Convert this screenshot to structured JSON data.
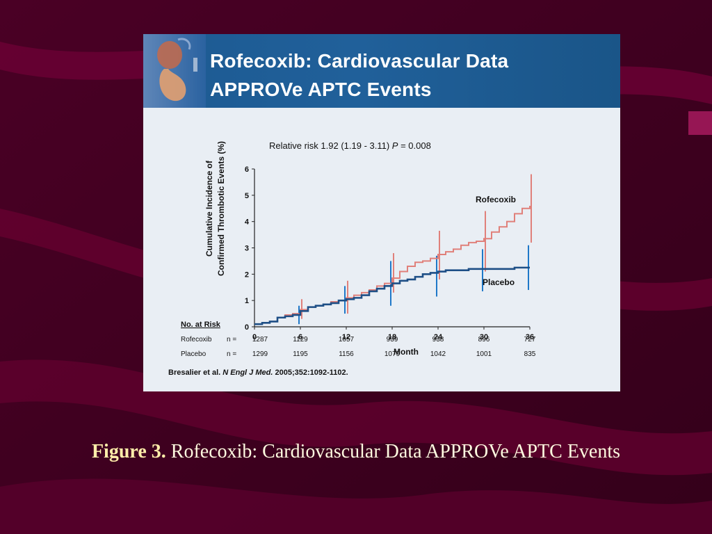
{
  "slide": {
    "title_line1": "Rofecoxib: Cardiovascular Data",
    "title_line2": "APPROVe APTC Events",
    "citation_authors": "Bresalier et al.",
    "citation_journal": "N Engl J Med.",
    "citation_rest": "2005;352:1092-1102."
  },
  "caption": {
    "label": "Figure 3.",
    "text": "Rofecoxib: Cardiovascular Data APPROVe APTC Events"
  },
  "colors": {
    "rofecoxib": "#e0807a",
    "placebo": "#1e4f86",
    "error_placebo": "#1f78c8"
  },
  "chart_data": {
    "type": "line",
    "title": "Rofecoxib: Cardiovascular Data APPROVe APTC Events",
    "xlabel": "Month",
    "ylabel_line1": "Cumulative Incidence of",
    "ylabel_line2": "Confirmed Thrombotic Events (%)",
    "xlim": [
      0,
      36
    ],
    "ylim": [
      0,
      6
    ],
    "xticks": [
      0,
      6,
      12,
      18,
      24,
      30,
      36
    ],
    "yticks": [
      0,
      1,
      2,
      3,
      4,
      5,
      6
    ],
    "annotation_prefix": "Relative risk 1.92 (1.19 - 3.11)",
    "annotation_p": "P",
    "annotation_suffix": " = 0.008",
    "series": [
      {
        "name": "Rofecoxib",
        "x": [
          0,
          1,
          2,
          3,
          4,
          5,
          6,
          7,
          8,
          9,
          10,
          11,
          12,
          13,
          14,
          15,
          16,
          17,
          18,
          19,
          20,
          21,
          22,
          23,
          24,
          25,
          26,
          27,
          28,
          29,
          30,
          31,
          32,
          33,
          34,
          35,
          36
        ],
        "y": [
          0.1,
          0.15,
          0.2,
          0.35,
          0.45,
          0.5,
          0.65,
          0.75,
          0.8,
          0.85,
          0.95,
          1.0,
          1.1,
          1.2,
          1.3,
          1.4,
          1.55,
          1.65,
          1.85,
          2.1,
          2.3,
          2.45,
          2.5,
          2.6,
          2.75,
          2.85,
          2.95,
          3.1,
          3.2,
          3.25,
          3.35,
          3.6,
          3.8,
          4.0,
          4.3,
          4.5,
          4.6
        ],
        "error_bars": [
          {
            "x": 6,
            "lo": 0.3,
            "hi": 1.05
          },
          {
            "x": 12,
            "lo": 0.5,
            "hi": 1.75
          },
          {
            "x": 18,
            "lo": 1.3,
            "hi": 2.8
          },
          {
            "x": 24,
            "lo": 1.8,
            "hi": 3.65
          },
          {
            "x": 30,
            "lo": 2.1,
            "hi": 4.4
          },
          {
            "x": 36,
            "lo": 3.2,
            "hi": 5.8
          }
        ]
      },
      {
        "name": "Placebo",
        "x": [
          0,
          1,
          2,
          3,
          4,
          5,
          6,
          7,
          8,
          9,
          10,
          11,
          12,
          13,
          14,
          15,
          16,
          17,
          18,
          19,
          20,
          21,
          22,
          23,
          24,
          25,
          26,
          27,
          28,
          29,
          30,
          31,
          32,
          33,
          34,
          35,
          36
        ],
        "y": [
          0.1,
          0.15,
          0.2,
          0.35,
          0.4,
          0.45,
          0.6,
          0.75,
          0.8,
          0.85,
          0.9,
          1.0,
          1.05,
          1.1,
          1.2,
          1.35,
          1.45,
          1.55,
          1.65,
          1.75,
          1.8,
          1.9,
          2.0,
          2.05,
          2.1,
          2.15,
          2.15,
          2.15,
          2.2,
          2.2,
          2.2,
          2.2,
          2.2,
          2.2,
          2.25,
          2.25,
          2.25
        ],
        "error_bars": [
          {
            "x": 6,
            "lo": 0.1,
            "hi": 0.8
          },
          {
            "x": 12,
            "lo": 0.5,
            "hi": 1.55
          },
          {
            "x": 18,
            "lo": 0.8,
            "hi": 2.5
          },
          {
            "x": 24,
            "lo": 1.15,
            "hi": 2.7
          },
          {
            "x": 30,
            "lo": 1.35,
            "hi": 2.95
          },
          {
            "x": 36,
            "lo": 1.4,
            "hi": 3.1
          }
        ]
      }
    ],
    "risk_table": {
      "header": "No. at Risk",
      "rows": [
        {
          "label": "Rofecoxib",
          "n": "n =",
          "values": [
            "1287",
            "1129",
            "1057",
            "939",
            "938",
            "896",
            "727"
          ]
        },
        {
          "label": "Placebo",
          "n": "n =",
          "values": [
            "1299",
            "1195",
            "1156",
            "1079",
            "1042",
            "1001",
            "835"
          ]
        }
      ]
    }
  }
}
